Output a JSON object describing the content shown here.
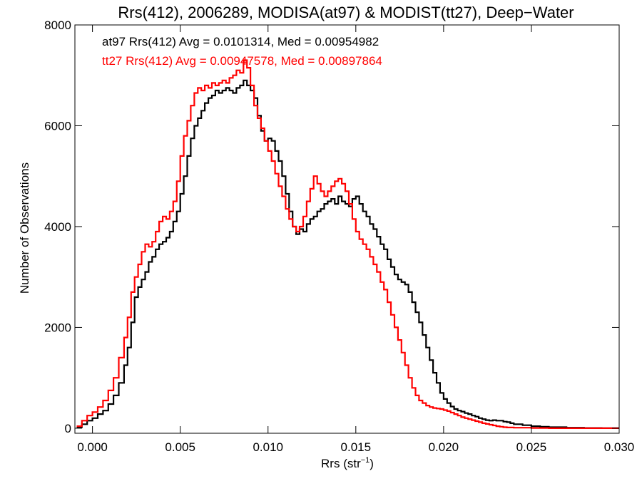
{
  "chart_data": {
    "type": "line",
    "step": true,
    "title": "Rrs(412), 2006289, MODISA(at97) & MODIST(tt27), Deep−Water",
    "xlabel": "Rrs (str",
    "xlabel_sup": "−1",
    "xlabel_end": ")",
    "ylabel": "Number of Observations",
    "xlim": [
      -0.001,
      0.03
    ],
    "ylim": [
      -100,
      8000
    ],
    "xticks": [
      0.0,
      0.005,
      0.01,
      0.015,
      0.02,
      0.025,
      0.03
    ],
    "xtick_labels": [
      "0.000",
      "0.005",
      "0.010",
      "0.015",
      "0.020",
      "0.025",
      "0.030"
    ],
    "yticks": [
      0,
      2000,
      4000,
      6000,
      8000
    ],
    "ytick_labels": [
      "0",
      "2000",
      "4000",
      "6000",
      "8000"
    ],
    "grid": false,
    "series": [
      {
        "name": "at97",
        "color": "#000000",
        "annotation": "at97 Rrs(412) Avg = 0.0101314, Med = 0.00954982",
        "points": [
          [
            -0.0009,
            20
          ],
          [
            -0.0006,
            80
          ],
          [
            -0.0003,
            150
          ],
          [
            0.0,
            200
          ],
          [
            0.0003,
            280
          ],
          [
            0.0006,
            350
          ],
          [
            0.0009,
            480
          ],
          [
            0.0012,
            650
          ],
          [
            0.0015,
            900
          ],
          [
            0.0018,
            1250
          ],
          [
            0.002,
            1600
          ],
          [
            0.0022,
            2100
          ],
          [
            0.0024,
            2600
          ],
          [
            0.0026,
            2800
          ],
          [
            0.0028,
            2950
          ],
          [
            0.003,
            3100
          ],
          [
            0.0032,
            3300
          ],
          [
            0.0034,
            3400
          ],
          [
            0.0036,
            3550
          ],
          [
            0.0038,
            3650
          ],
          [
            0.004,
            3700
          ],
          [
            0.0042,
            3780
          ],
          [
            0.0044,
            3900
          ],
          [
            0.0046,
            4100
          ],
          [
            0.0048,
            4300
          ],
          [
            0.005,
            4650
          ],
          [
            0.0052,
            5000
          ],
          [
            0.0054,
            5400
          ],
          [
            0.0056,
            5750
          ],
          [
            0.0058,
            6000
          ],
          [
            0.006,
            6150
          ],
          [
            0.0062,
            6300
          ],
          [
            0.0064,
            6450
          ],
          [
            0.0066,
            6550
          ],
          [
            0.0068,
            6600
          ],
          [
            0.007,
            6700
          ],
          [
            0.0072,
            6650
          ],
          [
            0.0074,
            6700
          ],
          [
            0.0076,
            6750
          ],
          [
            0.0078,
            6700
          ],
          [
            0.008,
            6650
          ],
          [
            0.0082,
            6750
          ],
          [
            0.0084,
            6800
          ],
          [
            0.0086,
            6900
          ],
          [
            0.0088,
            6800
          ],
          [
            0.009,
            6700
          ],
          [
            0.0092,
            6550
          ],
          [
            0.0094,
            6200
          ],
          [
            0.0096,
            5900
          ],
          [
            0.0098,
            5700
          ],
          [
            0.01,
            5750
          ],
          [
            0.0102,
            5700
          ],
          [
            0.0104,
            5500
          ],
          [
            0.0106,
            5300
          ],
          [
            0.0108,
            5000
          ],
          [
            0.011,
            4650
          ],
          [
            0.0112,
            4300
          ],
          [
            0.0114,
            4000
          ],
          [
            0.0116,
            3850
          ],
          [
            0.0118,
            3950
          ],
          [
            0.012,
            3900
          ],
          [
            0.0122,
            4050
          ],
          [
            0.0124,
            4150
          ],
          [
            0.0126,
            4200
          ],
          [
            0.0128,
            4300
          ],
          [
            0.013,
            4350
          ],
          [
            0.0132,
            4450
          ],
          [
            0.0134,
            4500
          ],
          [
            0.0136,
            4550
          ],
          [
            0.0138,
            4450
          ],
          [
            0.014,
            4600
          ],
          [
            0.0142,
            4500
          ],
          [
            0.0144,
            4450
          ],
          [
            0.0146,
            4400
          ],
          [
            0.0148,
            4550
          ],
          [
            0.015,
            4600
          ],
          [
            0.0152,
            4450
          ],
          [
            0.0154,
            4300
          ],
          [
            0.0156,
            4200
          ],
          [
            0.0158,
            4050
          ],
          [
            0.016,
            3950
          ],
          [
            0.0162,
            3800
          ],
          [
            0.0164,
            3650
          ],
          [
            0.0166,
            3550
          ],
          [
            0.0168,
            3350
          ],
          [
            0.017,
            3200
          ],
          [
            0.0172,
            3050
          ],
          [
            0.0174,
            2950
          ],
          [
            0.0176,
            2900
          ],
          [
            0.0178,
            2850
          ],
          [
            0.018,
            2700
          ],
          [
            0.0182,
            2500
          ],
          [
            0.0184,
            2300
          ],
          [
            0.0186,
            2100
          ],
          [
            0.0188,
            1850
          ],
          [
            0.019,
            1600
          ],
          [
            0.0192,
            1350
          ],
          [
            0.0194,
            1100
          ],
          [
            0.0196,
            900
          ],
          [
            0.0198,
            700
          ],
          [
            0.02,
            580
          ],
          [
            0.0202,
            500
          ],
          [
            0.0204,
            430
          ],
          [
            0.0206,
            380
          ],
          [
            0.0208,
            350
          ],
          [
            0.021,
            330
          ],
          [
            0.0212,
            300
          ],
          [
            0.0214,
            280
          ],
          [
            0.0216,
            250
          ],
          [
            0.0218,
            230
          ],
          [
            0.022,
            200
          ],
          [
            0.0222,
            180
          ],
          [
            0.0224,
            160
          ],
          [
            0.0226,
            150
          ],
          [
            0.0228,
            160
          ],
          [
            0.023,
            150
          ],
          [
            0.0232,
            150
          ],
          [
            0.0234,
            130
          ],
          [
            0.0236,
            120
          ],
          [
            0.0238,
            100
          ],
          [
            0.024,
            80
          ],
          [
            0.0245,
            60
          ],
          [
            0.025,
            40
          ],
          [
            0.0255,
            30
          ],
          [
            0.026,
            20
          ],
          [
            0.027,
            10
          ],
          [
            0.028,
            5
          ],
          [
            0.029,
            0
          ],
          [
            0.03,
            0
          ]
        ]
      },
      {
        "name": "tt27",
        "color": "#ff0000",
        "annotation": "tt27 Rrs(412) Avg = 0.00947578, Med = 0.00897864",
        "points": [
          [
            -0.0009,
            40
          ],
          [
            -0.0006,
            150
          ],
          [
            -0.0003,
            250
          ],
          [
            0.0,
            320
          ],
          [
            0.0003,
            420
          ],
          [
            0.0006,
            550
          ],
          [
            0.0009,
            750
          ],
          [
            0.0012,
            1000
          ],
          [
            0.0015,
            1400
          ],
          [
            0.0018,
            1800
          ],
          [
            0.002,
            2200
          ],
          [
            0.0022,
            2700
          ],
          [
            0.0024,
            3000
          ],
          [
            0.0026,
            3250
          ],
          [
            0.0028,
            3500
          ],
          [
            0.003,
            3650
          ],
          [
            0.0032,
            3600
          ],
          [
            0.0034,
            3700
          ],
          [
            0.0036,
            3900
          ],
          [
            0.0038,
            4100
          ],
          [
            0.004,
            4200
          ],
          [
            0.0042,
            4150
          ],
          [
            0.0044,
            4300
          ],
          [
            0.0046,
            4500
          ],
          [
            0.0048,
            4900
          ],
          [
            0.005,
            5400
          ],
          [
            0.0052,
            5800
          ],
          [
            0.0054,
            6100
          ],
          [
            0.0056,
            6400
          ],
          [
            0.0058,
            6650
          ],
          [
            0.006,
            6750
          ],
          [
            0.0062,
            6700
          ],
          [
            0.0064,
            6800
          ],
          [
            0.0066,
            6750
          ],
          [
            0.0068,
            6850
          ],
          [
            0.007,
            6800
          ],
          [
            0.0072,
            6850
          ],
          [
            0.0074,
            6900
          ],
          [
            0.0076,
            6850
          ],
          [
            0.0078,
            6950
          ],
          [
            0.008,
            7000
          ],
          [
            0.0082,
            7100
          ],
          [
            0.0084,
            7050
          ],
          [
            0.0086,
            7300
          ],
          [
            0.0088,
            7150
          ],
          [
            0.009,
            6800
          ],
          [
            0.0092,
            6400
          ],
          [
            0.0094,
            6150
          ],
          [
            0.0096,
            5950
          ],
          [
            0.0098,
            5700
          ],
          [
            0.01,
            5500
          ],
          [
            0.0102,
            5300
          ],
          [
            0.0104,
            5050
          ],
          [
            0.0106,
            4800
          ],
          [
            0.0108,
            4600
          ],
          [
            0.011,
            4350
          ],
          [
            0.0112,
            4150
          ],
          [
            0.0114,
            4000
          ],
          [
            0.0116,
            3900
          ],
          [
            0.0118,
            4000
          ],
          [
            0.012,
            4200
          ],
          [
            0.0122,
            4500
          ],
          [
            0.0124,
            4750
          ],
          [
            0.0126,
            5000
          ],
          [
            0.0128,
            4850
          ],
          [
            0.013,
            4700
          ],
          [
            0.0132,
            4600
          ],
          [
            0.0134,
            4700
          ],
          [
            0.0136,
            4800
          ],
          [
            0.0138,
            4900
          ],
          [
            0.014,
            4950
          ],
          [
            0.0142,
            4850
          ],
          [
            0.0144,
            4700
          ],
          [
            0.0146,
            4450
          ],
          [
            0.0148,
            4150
          ],
          [
            0.015,
            3900
          ],
          [
            0.0152,
            3750
          ],
          [
            0.0154,
            3650
          ],
          [
            0.0156,
            3550
          ],
          [
            0.0158,
            3400
          ],
          [
            0.016,
            3250
          ],
          [
            0.0162,
            3100
          ],
          [
            0.0164,
            2900
          ],
          [
            0.0166,
            2750
          ],
          [
            0.0168,
            2500
          ],
          [
            0.017,
            2250
          ],
          [
            0.0172,
            2000
          ],
          [
            0.0174,
            1750
          ],
          [
            0.0176,
            1500
          ],
          [
            0.0178,
            1250
          ],
          [
            0.018,
            1000
          ],
          [
            0.0182,
            800
          ],
          [
            0.0184,
            650
          ],
          [
            0.0186,
            550
          ],
          [
            0.0188,
            500
          ],
          [
            0.019,
            450
          ],
          [
            0.0192,
            420
          ],
          [
            0.0194,
            400
          ],
          [
            0.0196,
            390
          ],
          [
            0.0198,
            380
          ],
          [
            0.02,
            360
          ],
          [
            0.0202,
            340
          ],
          [
            0.0204,
            310
          ],
          [
            0.0206,
            280
          ],
          [
            0.0208,
            250
          ],
          [
            0.021,
            220
          ],
          [
            0.0212,
            200
          ],
          [
            0.0214,
            180
          ],
          [
            0.0216,
            160
          ],
          [
            0.0218,
            140
          ],
          [
            0.022,
            120
          ],
          [
            0.0222,
            100
          ],
          [
            0.0224,
            85
          ],
          [
            0.0226,
            70
          ],
          [
            0.0228,
            55
          ],
          [
            0.023,
            40
          ],
          [
            0.0232,
            30
          ],
          [
            0.0234,
            20
          ],
          [
            0.0236,
            15
          ],
          [
            0.024,
            10
          ],
          [
            0.025,
            5
          ],
          [
            0.026,
            0
          ],
          [
            0.03,
            0
          ]
        ]
      }
    ]
  }
}
